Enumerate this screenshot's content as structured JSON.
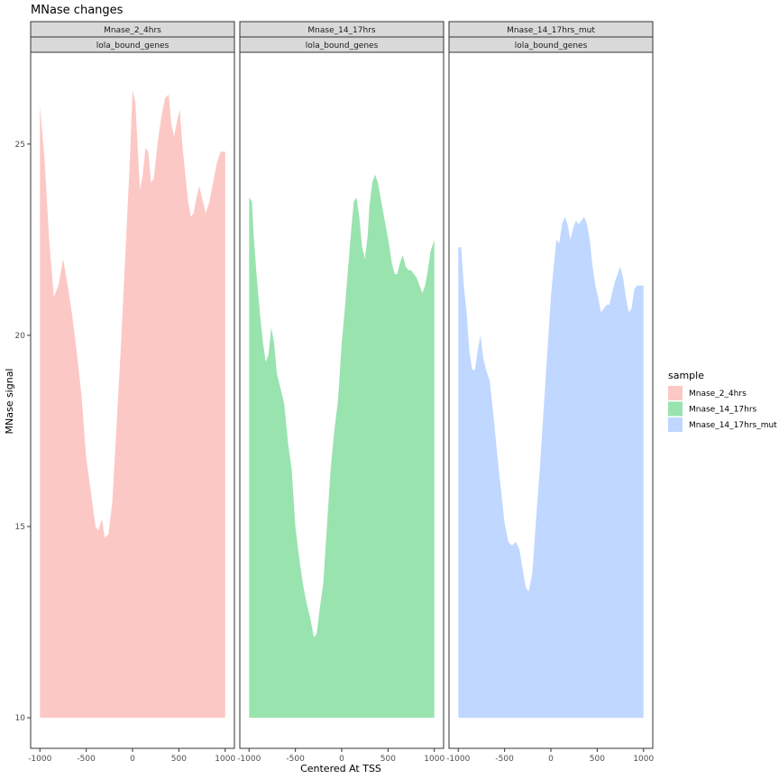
{
  "chart_data": {
    "type": "area",
    "title": "MNase changes",
    "xlabel": "Centered At TSS",
    "ylabel": "MNase signal",
    "xlim": [
      -1100,
      1100
    ],
    "ylim": [
      9.2,
      27.4
    ],
    "x_ticks": [
      -1000,
      -500,
      0,
      500,
      1000
    ],
    "x_tick_labels": [
      "-1000",
      "-500",
      "0",
      "500",
      "1000"
    ],
    "y_ticks": [
      10,
      15,
      20,
      25
    ],
    "y_tick_labels": [
      "10",
      "15",
      "20",
      "25"
    ],
    "baseline": 10,
    "grid": false,
    "legend": {
      "title": "sample",
      "position": "right",
      "entries": [
        {
          "label": "Mnase_2_4hrs",
          "color": "#F8766D"
        },
        {
          "label": "Mnase_14_17hrs",
          "color": "#00BA38"
        },
        {
          "label": "Mnase_14_17hrs_mut",
          "color": "#619CFF"
        }
      ]
    },
    "fill_alpha": 0.4,
    "panels": [
      {
        "strip_top": "Mnase_2_4hrs",
        "strip_bottom": "lola_bound_genes",
        "series": "Mnase_2_4hrs",
        "color": "#F8766D",
        "points": [
          [
            -1000,
            26.0
          ],
          [
            -950,
            24.6
          ],
          [
            -900,
            22.5
          ],
          [
            -850,
            21.0
          ],
          [
            -800,
            21.3
          ],
          [
            -750,
            22.0
          ],
          [
            -700,
            21.3
          ],
          [
            -650,
            20.5
          ],
          [
            -600,
            19.5
          ],
          [
            -550,
            18.4
          ],
          [
            -500,
            16.8
          ],
          [
            -450,
            15.9
          ],
          [
            -400,
            15.0
          ],
          [
            -370,
            14.9
          ],
          [
            -330,
            15.2
          ],
          [
            -300,
            14.7
          ],
          [
            -260,
            14.8
          ],
          [
            -220,
            15.6
          ],
          [
            -180,
            17.3
          ],
          [
            -130,
            19.5
          ],
          [
            -80,
            22.0
          ],
          [
            -30,
            24.5
          ],
          [
            0,
            26.4
          ],
          [
            30,
            26.1
          ],
          [
            60,
            24.7
          ],
          [
            80,
            23.8
          ],
          [
            110,
            24.2
          ],
          [
            140,
            24.9
          ],
          [
            170,
            24.8
          ],
          [
            200,
            24.0
          ],
          [
            230,
            24.1
          ],
          [
            270,
            25.0
          ],
          [
            310,
            25.7
          ],
          [
            350,
            26.2
          ],
          [
            390,
            26.3
          ],
          [
            420,
            25.5
          ],
          [
            450,
            25.2
          ],
          [
            480,
            25.6
          ],
          [
            510,
            25.9
          ],
          [
            540,
            24.9
          ],
          [
            570,
            24.2
          ],
          [
            600,
            23.5
          ],
          [
            630,
            23.1
          ],
          [
            660,
            23.2
          ],
          [
            690,
            23.6
          ],
          [
            720,
            23.9
          ],
          [
            750,
            23.6
          ],
          [
            790,
            23.2
          ],
          [
            830,
            23.5
          ],
          [
            870,
            24.0
          ],
          [
            910,
            24.5
          ],
          [
            950,
            24.8
          ],
          [
            1000,
            24.8
          ]
        ]
      },
      {
        "strip_top": "Mnase_14_17hrs",
        "strip_bottom": "lola_bound_genes",
        "series": "Mnase_14_17hrs",
        "color": "#00BA38",
        "points": [
          [
            -1000,
            23.6
          ],
          [
            -970,
            23.5
          ],
          [
            -950,
            22.6
          ],
          [
            -920,
            21.6
          ],
          [
            -880,
            20.5
          ],
          [
            -850,
            19.8
          ],
          [
            -820,
            19.3
          ],
          [
            -790,
            19.5
          ],
          [
            -760,
            20.2
          ],
          [
            -730,
            19.8
          ],
          [
            -700,
            19.0
          ],
          [
            -660,
            18.6
          ],
          [
            -620,
            18.2
          ],
          [
            -580,
            17.2
          ],
          [
            -540,
            16.5
          ],
          [
            -500,
            15.0
          ],
          [
            -460,
            14.2
          ],
          [
            -420,
            13.5
          ],
          [
            -380,
            13.0
          ],
          [
            -340,
            12.6
          ],
          [
            -300,
            12.1
          ],
          [
            -270,
            12.2
          ],
          [
            -240,
            12.8
          ],
          [
            -200,
            13.5
          ],
          [
            -160,
            15.0
          ],
          [
            -120,
            16.5
          ],
          [
            -80,
            17.5
          ],
          [
            -40,
            18.3
          ],
          [
            0,
            19.8
          ],
          [
            30,
            20.6
          ],
          [
            60,
            21.5
          ],
          [
            100,
            22.7
          ],
          [
            130,
            23.5
          ],
          [
            160,
            23.6
          ],
          [
            190,
            23.1
          ],
          [
            220,
            22.3
          ],
          [
            250,
            22.0
          ],
          [
            280,
            22.6
          ],
          [
            300,
            23.4
          ],
          [
            330,
            24.0
          ],
          [
            360,
            24.2
          ],
          [
            390,
            24.0
          ],
          [
            420,
            23.6
          ],
          [
            450,
            23.2
          ],
          [
            480,
            22.8
          ],
          [
            510,
            22.4
          ],
          [
            540,
            21.9
          ],
          [
            570,
            21.6
          ],
          [
            600,
            21.6
          ],
          [
            630,
            21.9
          ],
          [
            660,
            22.1
          ],
          [
            690,
            21.8
          ],
          [
            720,
            21.7
          ],
          [
            750,
            21.7
          ],
          [
            780,
            21.6
          ],
          [
            810,
            21.5
          ],
          [
            840,
            21.3
          ],
          [
            870,
            21.1
          ],
          [
            900,
            21.3
          ],
          [
            930,
            21.7
          ],
          [
            960,
            22.2
          ],
          [
            1000,
            22.5
          ]
        ]
      },
      {
        "strip_top": "Mnase_14_17hrs_mut",
        "strip_bottom": "lola_bound_genes",
        "series": "Mnase_14_17hrs_mut",
        "color": "#619CFF",
        "points": [
          [
            -1000,
            22.3
          ],
          [
            -970,
            22.3
          ],
          [
            -940,
            21.3
          ],
          [
            -910,
            20.6
          ],
          [
            -880,
            19.6
          ],
          [
            -850,
            19.1
          ],
          [
            -820,
            19.1
          ],
          [
            -790,
            19.6
          ],
          [
            -760,
            20.0
          ],
          [
            -730,
            19.4
          ],
          [
            -700,
            19.1
          ],
          [
            -660,
            18.8
          ],
          [
            -620,
            17.9
          ],
          [
            -580,
            16.9
          ],
          [
            -540,
            16.0
          ],
          [
            -500,
            15.1
          ],
          [
            -460,
            14.6
          ],
          [
            -420,
            14.5
          ],
          [
            -380,
            14.6
          ],
          [
            -340,
            14.4
          ],
          [
            -300,
            13.8
          ],
          [
            -270,
            13.4
          ],
          [
            -240,
            13.3
          ],
          [
            -200,
            13.8
          ],
          [
            -160,
            15.2
          ],
          [
            -120,
            16.5
          ],
          [
            -80,
            18.0
          ],
          [
            -40,
            19.5
          ],
          [
            0,
            21.0
          ],
          [
            30,
            21.8
          ],
          [
            60,
            22.5
          ],
          [
            90,
            22.4
          ],
          [
            120,
            22.9
          ],
          [
            150,
            23.1
          ],
          [
            180,
            22.9
          ],
          [
            210,
            22.5
          ],
          [
            240,
            22.8
          ],
          [
            270,
            23.0
          ],
          [
            300,
            22.9
          ],
          [
            330,
            23.0
          ],
          [
            360,
            23.1
          ],
          [
            390,
            22.9
          ],
          [
            420,
            22.5
          ],
          [
            450,
            21.8
          ],
          [
            480,
            21.3
          ],
          [
            510,
            21.0
          ],
          [
            540,
            20.6
          ],
          [
            570,
            20.7
          ],
          [
            600,
            20.8
          ],
          [
            630,
            20.8
          ],
          [
            660,
            21.1
          ],
          [
            690,
            21.4
          ],
          [
            720,
            21.6
          ],
          [
            750,
            21.8
          ],
          [
            780,
            21.5
          ],
          [
            810,
            21.0
          ],
          [
            840,
            20.6
          ],
          [
            870,
            20.7
          ],
          [
            900,
            21.2
          ],
          [
            930,
            21.3
          ],
          [
            1000,
            21.3
          ]
        ]
      }
    ]
  }
}
